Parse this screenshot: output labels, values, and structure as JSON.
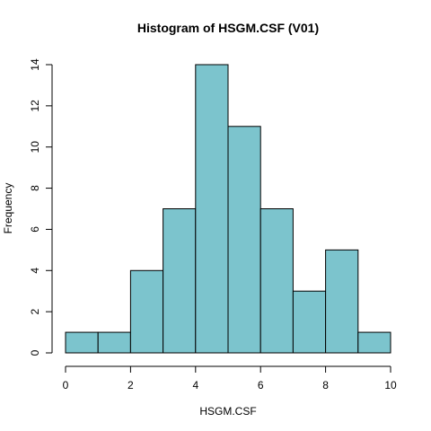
{
  "chart_data": {
    "type": "bar",
    "title": "Histogram of HSGM.CSF (V01)",
    "xlabel": "HSGM.CSF",
    "ylabel": "Frequency",
    "bins": [
      {
        "start": 0,
        "end": 1,
        "count": 1
      },
      {
        "start": 1,
        "end": 2,
        "count": 1
      },
      {
        "start": 2,
        "end": 3,
        "count": 4
      },
      {
        "start": 3,
        "end": 4,
        "count": 7
      },
      {
        "start": 4,
        "end": 5,
        "count": 14
      },
      {
        "start": 5,
        "end": 6,
        "count": 11
      },
      {
        "start": 6,
        "end": 7,
        "count": 7
      },
      {
        "start": 7,
        "end": 8,
        "count": 3
      },
      {
        "start": 8,
        "end": 9,
        "count": 5
      },
      {
        "start": 9,
        "end": 10,
        "count": 1
      }
    ],
    "xlim": [
      0,
      10
    ],
    "ylim": [
      0,
      14
    ],
    "xticks": [
      "0",
      "2",
      "4",
      "6",
      "8",
      "10"
    ],
    "yticks": [
      "0",
      "2",
      "4",
      "6",
      "8",
      "10",
      "12",
      "14"
    ],
    "bar_color": "#7cc4cd",
    "grid": false,
    "legend": "none"
  }
}
